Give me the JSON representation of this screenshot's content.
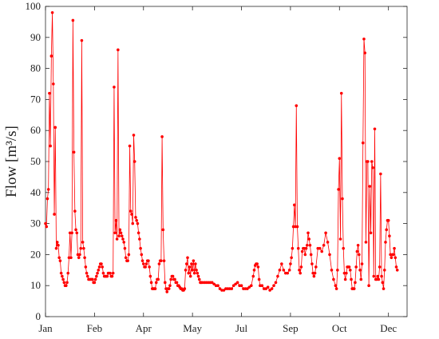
{
  "chart_data": {
    "type": "line",
    "y_label": "Flow [m³/s]",
    "color": "#ff0000",
    "xlim": [
      0,
      369
    ],
    "ylim": [
      0,
      100
    ],
    "xticks": [
      {
        "value": 0,
        "label": "Jan"
      },
      {
        "value": 50,
        "label": "Feb"
      },
      {
        "value": 100,
        "label": "Apr"
      },
      {
        "value": 150,
        "label": "May"
      },
      {
        "value": 200,
        "label": "Jul"
      },
      {
        "value": 250,
        "label": "Sep"
      },
      {
        "value": 300,
        "label": "Oct"
      },
      {
        "value": 350,
        "label": "Dec"
      }
    ],
    "yticks": [
      0,
      10,
      20,
      30,
      40,
      50,
      60,
      70,
      80,
      90,
      100
    ],
    "x": [
      0,
      1,
      2,
      3,
      4,
      5,
      6,
      7,
      8,
      9,
      10,
      11,
      12,
      13,
      14,
      15,
      16,
      17,
      18,
      19,
      20,
      21,
      22,
      23,
      24,
      25,
      26,
      27,
      28,
      29,
      30,
      31,
      32,
      33,
      34,
      35,
      36,
      37,
      38,
      39,
      40,
      41,
      42,
      43,
      44,
      45,
      46,
      47,
      48,
      49,
      50,
      51,
      52,
      53,
      54,
      55,
      56,
      57,
      58,
      59,
      60,
      61,
      62,
      63,
      64,
      65,
      66,
      67,
      68,
      69,
      70,
      71,
      72,
      73,
      74,
      75,
      76,
      77,
      78,
      79,
      80,
      81,
      82,
      83,
      84,
      85,
      86,
      87,
      88,
      89,
      90,
      91,
      92,
      93,
      94,
      95,
      96,
      97,
      98,
      99,
      100,
      101,
      102,
      103,
      104,
      105,
      106,
      107,
      108,
      109,
      110,
      111,
      112,
      113,
      114,
      115,
      116,
      117,
      118,
      119,
      120,
      121,
      122,
      123,
      124,
      125,
      126,
      127,
      128,
      129,
      130,
      131,
      132,
      133,
      134,
      135,
      136,
      137,
      138,
      139,
      140,
      141,
      142,
      143,
      144,
      145,
      146,
      147,
      148,
      149,
      150,
      151,
      152,
      153,
      154,
      155,
      156,
      157,
      158,
      159,
      160,
      162,
      164,
      166,
      168,
      170,
      172,
      174,
      176,
      178,
      180,
      182,
      184,
      186,
      188,
      190,
      192,
      194,
      196,
      198,
      200,
      202,
      204,
      206,
      208,
      210,
      212,
      213,
      214,
      215,
      216,
      217,
      218,
      219,
      221,
      223,
      225,
      227,
      229,
      231,
      233,
      235,
      237,
      239,
      241,
      243,
      245,
      247,
      249,
      250,
      251,
      252,
      253,
      254,
      255,
      256,
      257,
      258,
      259,
      260,
      261,
      262,
      263,
      264,
      265,
      266,
      267,
      268,
      269,
      270,
      271,
      272,
      273,
      274,
      275,
      276,
      278,
      280,
      282,
      284,
      286,
      288,
      290,
      292,
      294,
      296,
      297,
      298,
      299,
      300,
      301,
      302,
      303,
      304,
      305,
      306,
      307,
      308,
      309,
      310,
      311,
      312,
      313,
      314,
      315,
      316,
      317,
      318,
      319,
      320,
      321,
      322,
      323,
      324,
      325,
      326,
      327,
      328,
      329,
      330,
      331,
      332,
      333,
      334,
      335,
      336,
      337,
      338,
      339,
      340,
      341,
      342,
      343,
      344,
      345,
      346,
      347,
      348,
      349,
      350,
      351,
      352,
      353,
      354,
      355,
      356,
      357,
      358,
      359
    ],
    "values": [
      30,
      29,
      38,
      41,
      72,
      55,
      84,
      98,
      75,
      33,
      61,
      22,
      24,
      23,
      19,
      18,
      14,
      13,
      12,
      11,
      10,
      10,
      11,
      14,
      19,
      27,
      19,
      27,
      95.5,
      53,
      34,
      28,
      27,
      20,
      19,
      20,
      22,
      89,
      24,
      22,
      19,
      16,
      14,
      13,
      12,
      12,
      12,
      12,
      12,
      11,
      11,
      12,
      13,
      14,
      15,
      16,
      17,
      17,
      16,
      14,
      13,
      13,
      13,
      13,
      14,
      14,
      14,
      13,
      13,
      14,
      74,
      27,
      31,
      25,
      86,
      26,
      28,
      27,
      26,
      25,
      24,
      22,
      19,
      18,
      18,
      20,
      55,
      34,
      33,
      30,
      58.5,
      50,
      32,
      31,
      30,
      27,
      25,
      22,
      20,
      18,
      17,
      16,
      16,
      17,
      18,
      18,
      16,
      13,
      11,
      9,
      9,
      9,
      9,
      11,
      12,
      12,
      17,
      18,
      18,
      58,
      28,
      18,
      11,
      9,
      8,
      9,
      9,
      10,
      12,
      13,
      13,
      12,
      12,
      11,
      11,
      10,
      10,
      9.5,
      9,
      9,
      8.5,
      8.5,
      9,
      15,
      17,
      19,
      14,
      16,
      13,
      17,
      15,
      18,
      14,
      17,
      15,
      14,
      13,
      12,
      11,
      11,
      11,
      11,
      11,
      11,
      11,
      11,
      10.5,
      10,
      10,
      9,
      8.5,
      8.5,
      9,
      9,
      9,
      9,
      10,
      10.5,
      11,
      10,
      10,
      9,
      9,
      9,
      9.5,
      10,
      13,
      15,
      16.5,
      17,
      17,
      16,
      12,
      10,
      10,
      9,
      9,
      9.5,
      8.5,
      9,
      10,
      11,
      13,
      15,
      17,
      15,
      14,
      14,
      15,
      17,
      19,
      22,
      29,
      36,
      29,
      68,
      29,
      22,
      15,
      14,
      16,
      21,
      22,
      22,
      20,
      22,
      23,
      27,
      25,
      23,
      20,
      17,
      14,
      13,
      14,
      16,
      22,
      22,
      21,
      23,
      27,
      24,
      20,
      15,
      12,
      10,
      9,
      15,
      41,
      51,
      25,
      72,
      38,
      22,
      14,
      12,
      14,
      16,
      16,
      16,
      15,
      12,
      9,
      9,
      9,
      11,
      16,
      21,
      23,
      20,
      15,
      12,
      17,
      56,
      89.5,
      85,
      24,
      50,
      50,
      10,
      42,
      27,
      50,
      48,
      13,
      60.5,
      12,
      12,
      13,
      12,
      16,
      46,
      13,
      11,
      9,
      15,
      24,
      28,
      31,
      31,
      26,
      20,
      19,
      20,
      20,
      22,
      19,
      16,
      15
    ]
  }
}
